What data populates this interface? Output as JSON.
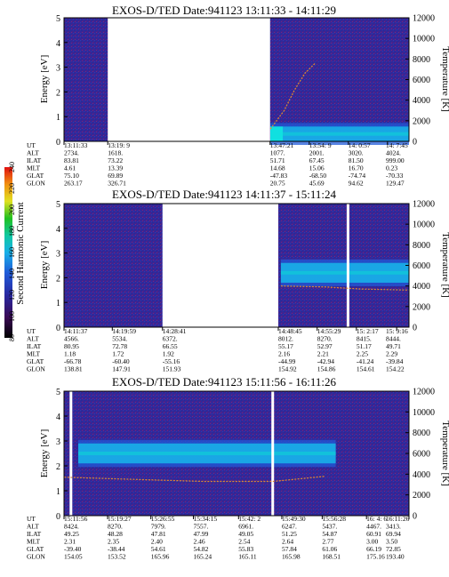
{
  "colorbar": {
    "label": "Second Harmonic Current",
    "ticks": [
      "80",
      "100",
      "120",
      "140",
      "160",
      "180",
      "200",
      "220",
      "240"
    ]
  },
  "orbit_row_labels": [
    "UT",
    "ALT",
    "ILAT",
    "MLT",
    "GLAT",
    "GLON"
  ],
  "chart_data": [
    {
      "type": "heatmap",
      "title": "EXOS-D/TED   Date:941123   13:11:33 - 14:11:29",
      "ylabel": "Energy [eV]",
      "y2label": "Temperature [K]",
      "ylim": [
        0,
        5
      ],
      "y2lim": [
        0,
        12000
      ],
      "yticks": [
        "0",
        "1",
        "2",
        "3",
        "4",
        "5"
      ],
      "y2ticks": [
        "0",
        "2000",
        "4000",
        "6000",
        "8000",
        "10000",
        "12000"
      ],
      "data_gaps": [
        [
          "13:19:09",
          "13:47:21"
        ]
      ],
      "spectrum_band_energy_eV": [
        0,
        0.6
      ],
      "temperature_trace_K": [
        [
          13.79,
          1200
        ],
        [
          13.83,
          3000
        ],
        [
          13.86,
          5000
        ],
        [
          13.89,
          6600
        ],
        [
          13.92,
          7600
        ]
      ],
      "orbit": {
        "UT": [
          "13:11:33",
          "13:19: 9",
          "13:47:21",
          "13:54: 9",
          "14: 0:57",
          "14: 7:45"
        ],
        "ALT": [
          "2734.",
          "1618.",
          "1077.",
          "2001.",
          "3020.",
          "4024."
        ],
        "ILAT": [
          "83.81",
          "73.22",
          "51.71",
          "67.45",
          "81.50",
          "999.00"
        ],
        "MLT": [
          "4.61",
          "13.39",
          "14.68",
          "15.06",
          "16.70",
          "0.23"
        ],
        "GLAT": [
          "75.10",
          "69.89",
          "-47.83",
          "-68.50",
          "-74.74",
          "-70.33"
        ],
        "GLON": [
          "263.17",
          "326.71",
          "20.75",
          "45.69",
          "94.62",
          "129.47"
        ]
      }
    },
    {
      "type": "heatmap",
      "title": "EXOS-D/TED   Date:941123   14:11:37 - 15:11:24",
      "ylabel": "Energy [eV]",
      "y2label": "Temperature [K]",
      "ylim": [
        0,
        5
      ],
      "y2lim": [
        0,
        12000
      ],
      "yticks": [
        "0",
        "1",
        "2",
        "3",
        "4",
        "5"
      ],
      "y2ticks": [
        "0",
        "2000",
        "4000",
        "6000",
        "8000",
        "10000",
        "12000"
      ],
      "data_gaps": [
        [
          "14:28:41",
          "14:48:45"
        ]
      ],
      "spectrum_band_energy_eV": [
        1.8,
        2.6
      ],
      "temperature_trace_K": [
        [
          14.82,
          4000
        ],
        [
          14.95,
          3900
        ],
        [
          15.05,
          3700
        ],
        [
          15.19,
          3600
        ]
      ],
      "orbit": {
        "UT": [
          "14:11:37",
          "14:19:59",
          "14:28:41",
          "14:48:45",
          "14:55:29",
          "15: 2:17",
          "15: 9:16"
        ],
        "ALT": [
          "4566.",
          "5534.",
          "6372.",
          "8012.",
          "8270.",
          "8415.",
          "8444."
        ],
        "ILAT": [
          "80.95",
          "72.78",
          "66.55",
          "55.17",
          "52.97",
          "51.17",
          "49.71"
        ],
        "MLT": [
          "1.18",
          "1.72",
          "1.92",
          "2.16",
          "2.21",
          "2.25",
          "2.29"
        ],
        "GLAT": [
          "-66.78",
          "-60.40",
          "-55.16",
          "-44.99",
          "-42.94",
          "-41.24",
          "-39.84"
        ],
        "GLON": [
          "138.81",
          "147.91",
          "151.93",
          "154.92",
          "154.86",
          "154.61",
          "154.22"
        ]
      }
    },
    {
      "type": "heatmap",
      "title": "EXOS-D/TED   Date:941123   15:11:56 - 16:11:26",
      "ylabel": "Energy [eV]",
      "y2label": "Temperature [K]",
      "ylim": [
        0,
        5
      ],
      "y2lim": [
        0,
        12000
      ],
      "yticks": [
        "0",
        "1",
        "2",
        "3",
        "4",
        "5"
      ],
      "y2ticks": [
        "0",
        "2000",
        "4000",
        "6000",
        "8000",
        "10000",
        "12000"
      ],
      "data_gaps": [],
      "spectrum_band_energy_eV": [
        2.1,
        2.9
      ],
      "temperature_trace_K": [
        [
          15.2,
          3700
        ],
        [
          15.4,
          3500
        ],
        [
          15.6,
          3300
        ],
        [
          15.8,
          3300
        ],
        [
          15.95,
          3800
        ]
      ],
      "orbit": {
        "UT": [
          "15:11:56",
          "15:19:27",
          "15:26:55",
          "15:34:15",
          "15:42: 2",
          "15:49:30",
          "15:56:28",
          "16: 4: 6",
          "16:11:26"
        ],
        "ALT": [
          "8424.",
          "8270.",
          "7979.",
          "7557.",
          "6961.",
          "6247.",
          "5437.",
          "4467.",
          "3413."
        ],
        "ILAT": [
          "49.25",
          "48.28",
          "47.81",
          "47.99",
          "49.05",
          "51.25",
          "54.87",
          "60.91",
          "69.94"
        ],
        "MLT": [
          "2.31",
          "2.35",
          "2.40",
          "2.46",
          "2.54",
          "2.64",
          "2.77",
          "3.00",
          "3.50"
        ],
        "GLAT": [
          "-39.40",
          "-38.44",
          "54.61",
          "54.82",
          "55.83",
          "57.84",
          "61.06",
          "66.19",
          "72.85"
        ],
        "GLON": [
          "154.05",
          "153.52",
          "165.96",
          "165.24",
          "165.11",
          "165.98",
          "168.51",
          "175.16",
          "193.40"
        ]
      }
    }
  ]
}
